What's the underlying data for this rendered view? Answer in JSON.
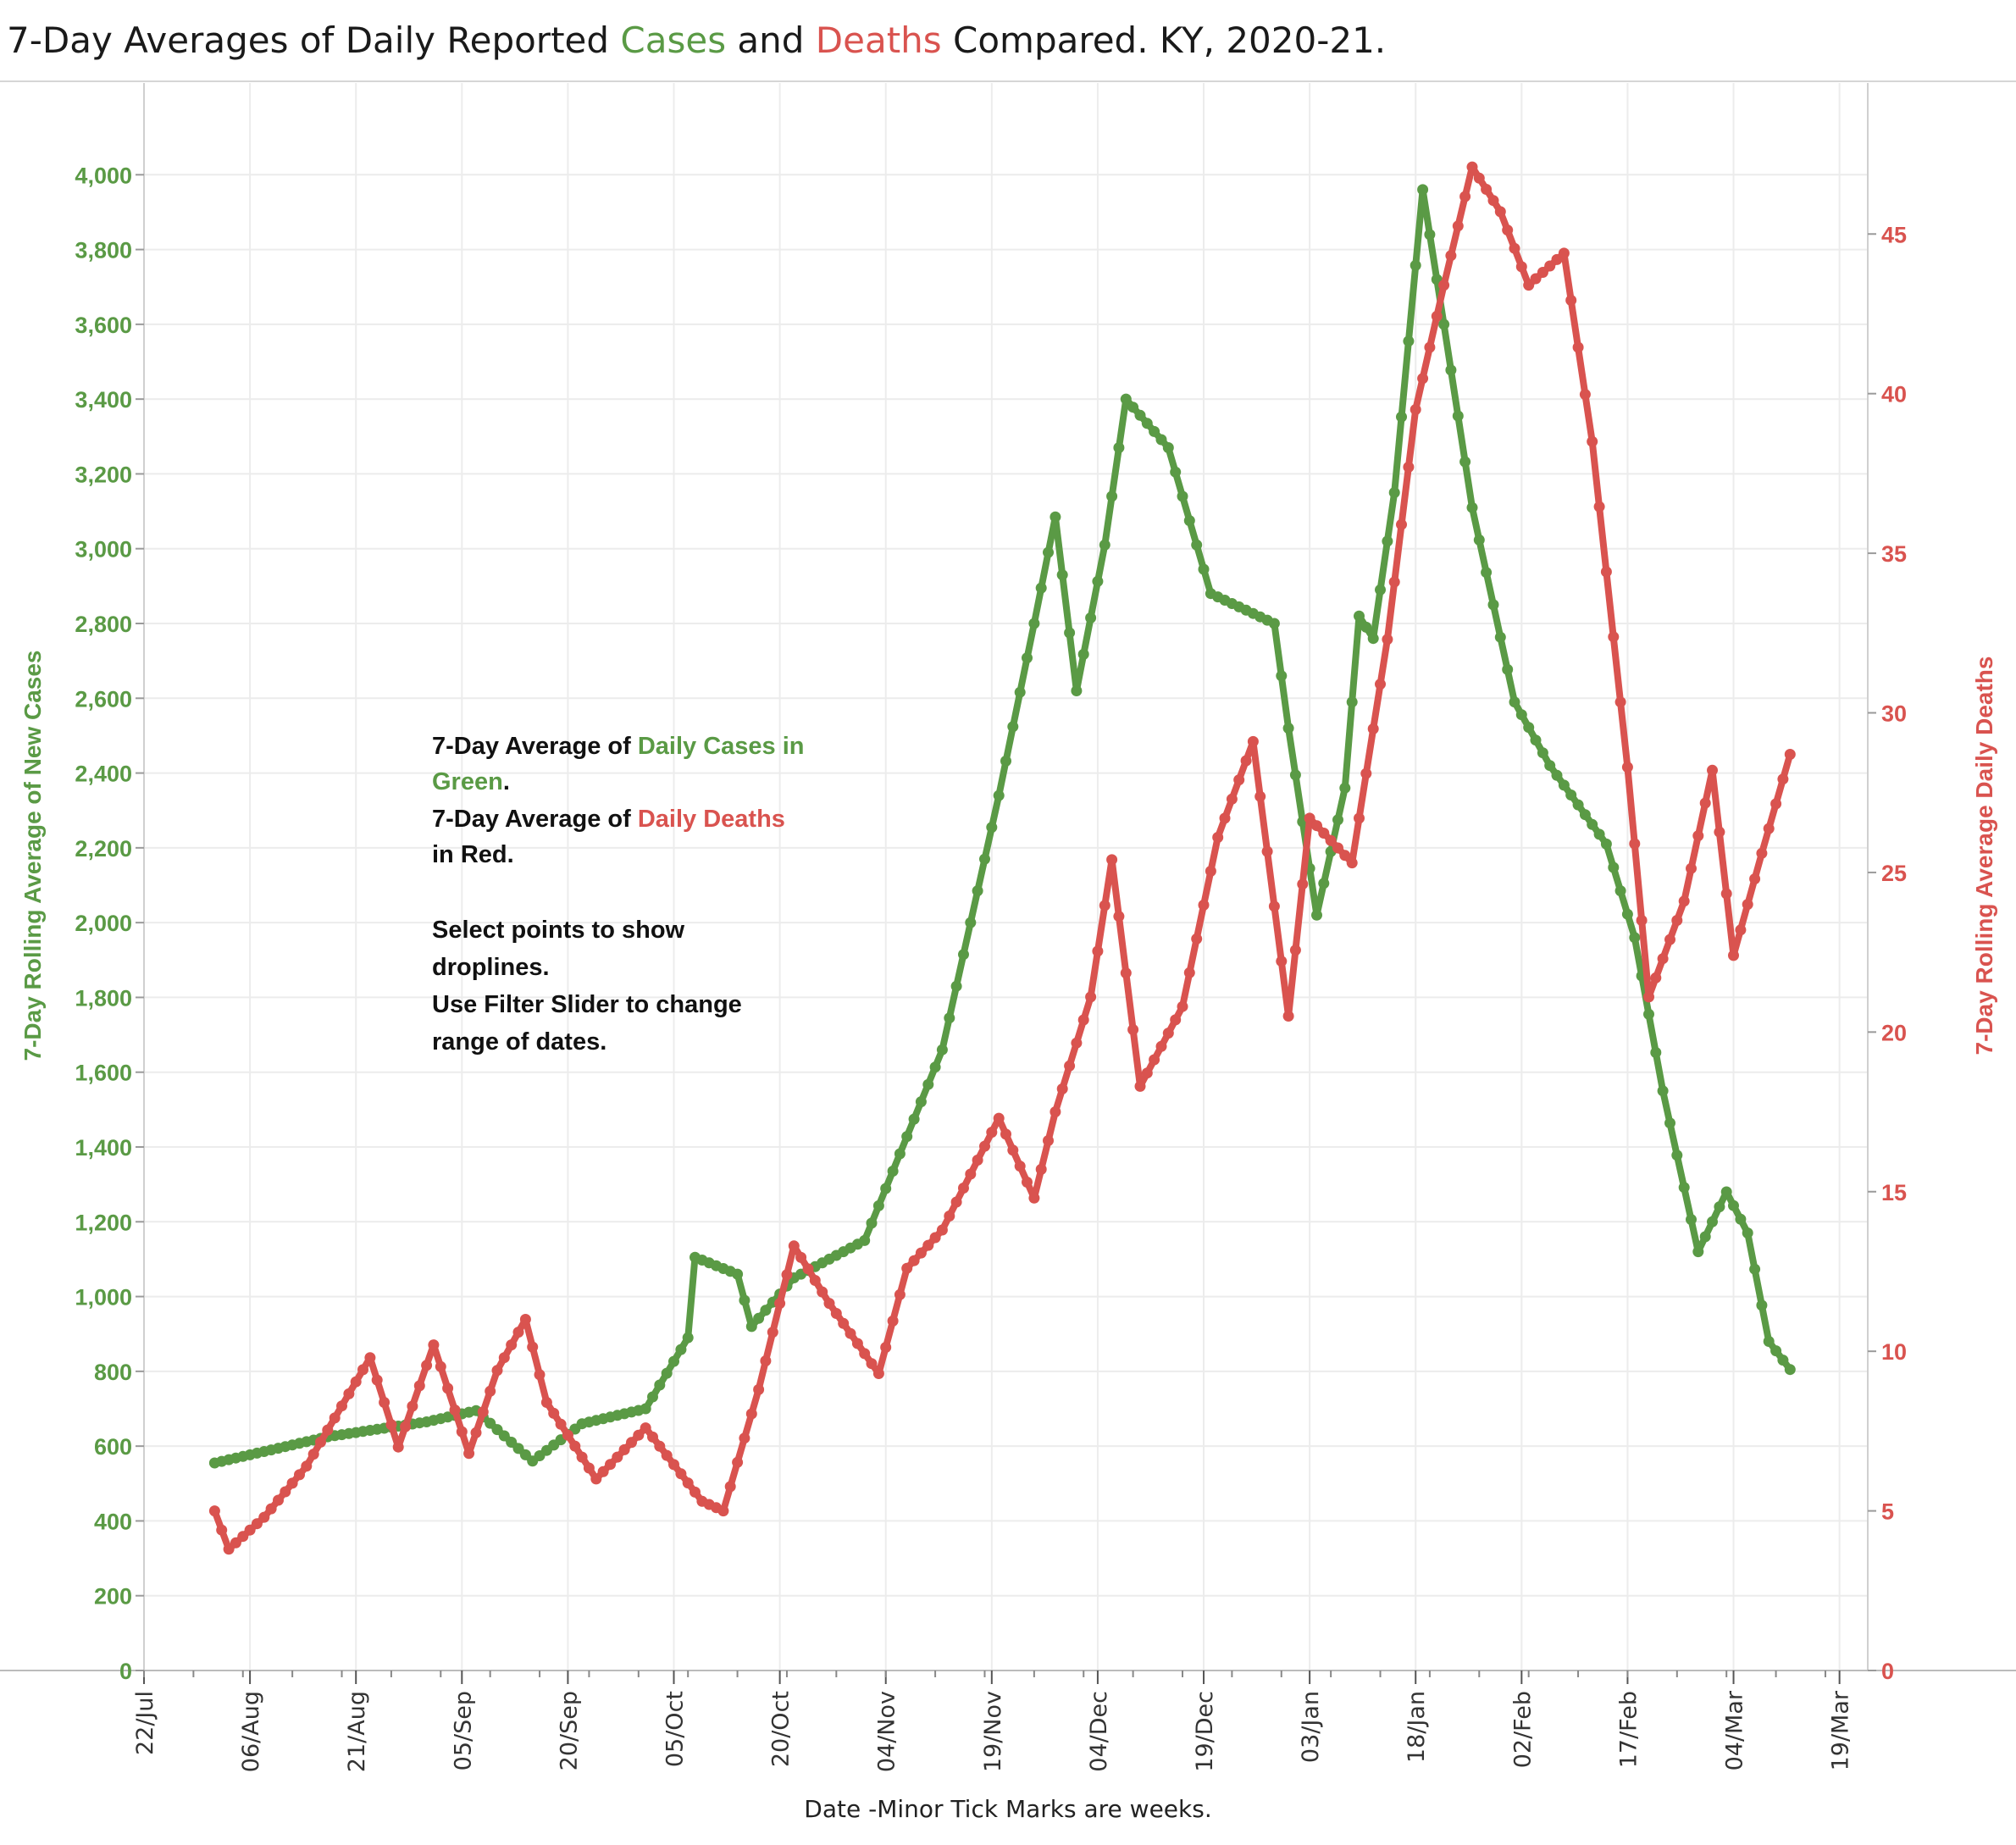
{
  "chart_data": {
    "type": "line",
    "title": {
      "prefix": "7-Day Averages of Daily Reported ",
      "cases_word": "Cases",
      "mid": " and ",
      "deaths_word": "Deaths",
      "suffix": " Compared. KY, 2020-21."
    },
    "xlabel": "Date  -Minor Tick Marks are weeks.",
    "ylabel_left": "7-Day Rolling  Average of New Cases",
    "ylabel_right": "7-Day Rolling Average Daily  Deaths",
    "ylim_left": [
      0,
      4200
    ],
    "ylim_right": [
      0,
      49.2
    ],
    "yticks_left": [
      0,
      200,
      400,
      600,
      800,
      1000,
      1200,
      1400,
      1600,
      1800,
      2000,
      2200,
      2400,
      2600,
      2800,
      3000,
      3200,
      3400,
      3600,
      3800,
      4000
    ],
    "ytick_labels_left": [
      "0",
      "200",
      "400",
      "600",
      "800",
      "1,000",
      "1,200",
      "1,400",
      "1,600",
      "1,800",
      "2,000",
      "2,200",
      "2,400",
      "2,600",
      "2,800",
      "3,000",
      "3,200",
      "3,400",
      "3,600",
      "3,800",
      "4,000"
    ],
    "yticks_right": [
      0,
      5,
      10,
      15,
      20,
      25,
      30,
      35,
      40,
      45
    ],
    "xticks": [
      "2020-07-22",
      "2020-08-06",
      "2020-08-21",
      "2020-09-05",
      "2020-09-20",
      "2020-10-05",
      "2020-10-20",
      "2020-11-04",
      "2020-11-19",
      "2020-12-04",
      "2020-12-19",
      "2021-01-03",
      "2021-01-18",
      "2021-02-02",
      "2021-02-17",
      "2021-03-04",
      "2021-03-19"
    ],
    "xtick_labels": [
      "22/Jul",
      "06/Aug",
      "21/Aug",
      "05/Sep",
      "20/Sep",
      "05/Oct",
      "20/Oct",
      "04/Nov",
      "19/Nov",
      "04/Dec",
      "19/Dec",
      "03/Jan",
      "18/Jan",
      "02/Feb",
      "17/Feb",
      "04/Mar",
      "19/Mar"
    ],
    "xlim": [
      "2020-07-22",
      "2021-03-23"
    ],
    "grid": true,
    "annotation": {
      "line1_prefix": "7-Day Average of ",
      "line1_colored": "Daily Cases in",
      "line2_colored": "Green",
      "line2_suffix": ".",
      "line3_prefix": "7-Day Average of ",
      "line3_colored": "Daily Deaths",
      "line4_colored": "in Red.",
      "line5": "Select points to show",
      "line6": "droplines.",
      "line7": "Use Filter Slider to change",
      "line8": "range of dates."
    },
    "colors": {
      "cases": "#5a9a45",
      "deaths": "#d9534f"
    },
    "series": [
      {
        "axis": "left",
        "color": "#5a9a45",
        "x": [
          "2020-08-01",
          "2020-08-17",
          "2020-08-31",
          "2020-09-07",
          "2020-09-15",
          "2020-09-22",
          "2020-10-01",
          "2020-10-07",
          "2020-10-08",
          "2020-10-14",
          "2020-10-16",
          "2020-10-22",
          "2020-11-01",
          "2020-11-12",
          "2020-11-20",
          "2020-11-25",
          "2020-11-28",
          "2020-12-01",
          "2020-12-05",
          "2020-12-08",
          "2020-12-14",
          "2020-12-20",
          "2020-12-29",
          "2020-12-31",
          "2021-01-04",
          "2021-01-08",
          "2021-01-10",
          "2021-01-12",
          "2021-01-15",
          "2021-01-19",
          "2021-01-22",
          "2021-01-26",
          "2021-02-01",
          "2021-02-06",
          "2021-02-14",
          "2021-02-18",
          "2021-02-22",
          "2021-02-27",
          "2021-03-03",
          "2021-03-06",
          "2021-03-09",
          "2021-03-12"
        ],
        "values": [
          555,
          625,
          665,
          695,
          560,
          660,
          700,
          890,
          1105,
          1060,
          920,
          1050,
          1150,
          1660,
          2340,
          2800,
          3085,
          2620,
          3010,
          3400,
          3270,
          2880,
          2800,
          2520,
          2020,
          2360,
          2820,
          2760,
          3150,
          3960,
          3600,
          3110,
          2590,
          2420,
          2210,
          1960,
          1550,
          1120,
          1280,
          1170,
          880,
          805
        ]
      },
      {
        "axis": "right",
        "color": "#d9534f",
        "x": [
          "2020-08-01",
          "2020-08-03",
          "2020-08-08",
          "2020-08-14",
          "2020-08-23",
          "2020-08-27",
          "2020-09-01",
          "2020-09-06",
          "2020-09-10",
          "2020-09-14",
          "2020-09-17",
          "2020-09-24",
          "2020-10-01",
          "2020-10-09",
          "2020-10-12",
          "2020-10-17",
          "2020-10-22",
          "2020-10-27",
          "2020-11-03",
          "2020-11-07",
          "2020-11-12",
          "2020-11-20",
          "2020-11-25",
          "2020-11-28",
          "2020-12-03",
          "2020-12-06",
          "2020-12-10",
          "2020-12-16",
          "2020-12-21",
          "2020-12-26",
          "2020-12-31",
          "2021-01-03",
          "2021-01-09",
          "2021-01-14",
          "2021-01-18",
          "2021-01-22",
          "2021-01-26",
          "2021-01-30",
          "2021-02-03",
          "2021-02-08",
          "2021-02-12",
          "2021-02-17",
          "2021-02-20",
          "2021-02-25",
          "2021-03-01",
          "2021-03-04",
          "2021-03-08",
          "2021-03-12"
        ],
        "values": [
          5,
          3.8,
          4.8,
          6.4,
          9.8,
          7,
          10.2,
          6.8,
          9.4,
          11,
          8.4,
          6,
          7.6,
          5.3,
          5,
          8.8,
          13.3,
          11.5,
          9.3,
          12.6,
          13.8,
          17.3,
          14.8,
          17.5,
          21.1,
          25.4,
          18.3,
          20.8,
          26.1,
          29.1,
          20.5,
          26.7,
          25.3,
          32.3,
          39.5,
          43.4,
          47.1,
          45.7,
          43.4,
          44.4,
          38.5,
          28.3,
          21.1,
          24.1,
          28.2,
          22.4,
          25.6,
          28.7
        ]
      }
    ]
  }
}
